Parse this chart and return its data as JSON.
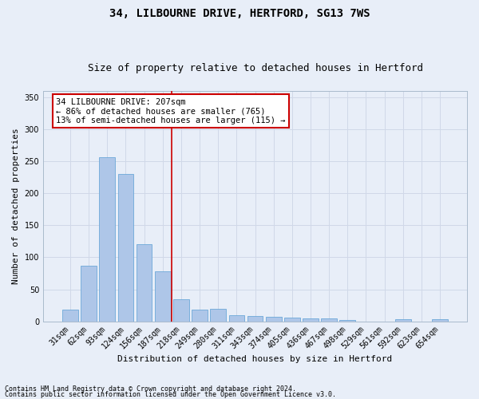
{
  "title1": "34, LILBOURNE DRIVE, HERTFORD, SG13 7WS",
  "title2": "Size of property relative to detached houses in Hertford",
  "xlabel": "Distribution of detached houses by size in Hertford",
  "ylabel": "Number of detached properties",
  "categories": [
    "31sqm",
    "62sqm",
    "93sqm",
    "124sqm",
    "156sqm",
    "187sqm",
    "218sqm",
    "249sqm",
    "280sqm",
    "311sqm",
    "343sqm",
    "374sqm",
    "405sqm",
    "436sqm",
    "467sqm",
    "498sqm",
    "529sqm",
    "561sqm",
    "592sqm",
    "623sqm",
    "654sqm"
  ],
  "values": [
    18,
    87,
    257,
    230,
    120,
    78,
    35,
    18,
    20,
    10,
    8,
    7,
    6,
    5,
    4,
    2,
    0,
    0,
    3,
    0,
    3
  ],
  "bar_color": "#aec6e8",
  "bar_edge_color": "#5a9fd4",
  "vline_x": 6.0,
  "vline_color": "#cc0000",
  "annotation_lines": [
    "34 LILBOURNE DRIVE: 207sqm",
    "← 86% of detached houses are smaller (765)",
    "13% of semi-detached houses are larger (115) →"
  ],
  "annotation_box_color": "#ffffff",
  "annotation_box_edge_color": "#cc0000",
  "ylim": [
    0,
    360
  ],
  "yticks": [
    0,
    50,
    100,
    150,
    200,
    250,
    300,
    350
  ],
  "grid_color": "#d0d8e8",
  "background_color": "#e8eef8",
  "footnote1": "Contains HM Land Registry data © Crown copyright and database right 2024.",
  "footnote2": "Contains public sector information licensed under the Open Government Licence v3.0.",
  "title_fontsize": 10,
  "subtitle_fontsize": 9,
  "axis_label_fontsize": 8,
  "tick_fontsize": 7,
  "annotation_fontsize": 7.5,
  "footnote_fontsize": 6
}
